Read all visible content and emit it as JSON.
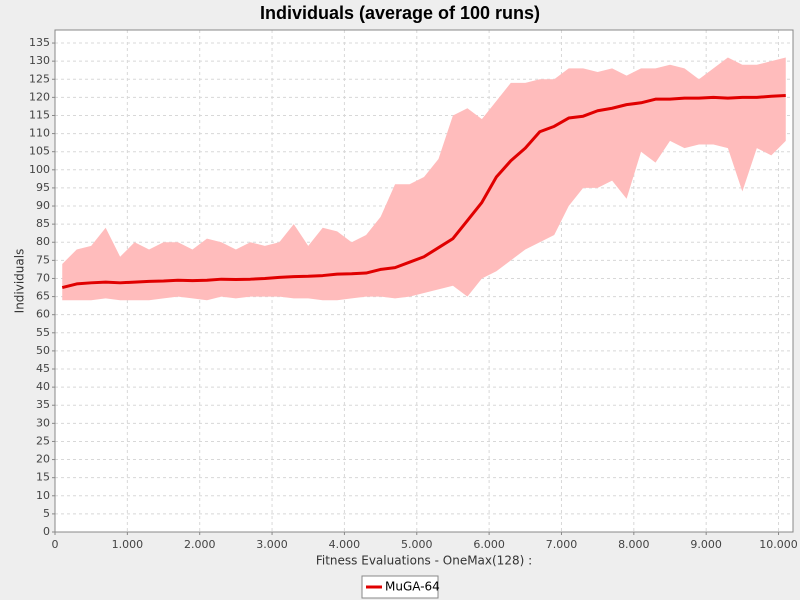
{
  "chart_data": {
    "type": "line",
    "title": "Individuals (average of 100 runs)",
    "x_label": "Fitness Evaluations - OneMax(128) :",
    "y_label": "Individuals",
    "x": [
      100,
      300,
      500,
      700,
      900,
      1100,
      1300,
      1500,
      1700,
      1900,
      2100,
      2300,
      2500,
      2700,
      2900,
      3100,
      3300,
      3500,
      3700,
      3900,
      4100,
      4300,
      4500,
      4700,
      4900,
      5100,
      5300,
      5500,
      5700,
      5900,
      6100,
      6300,
      6500,
      6700,
      6900,
      7100,
      7300,
      7500,
      7700,
      7900,
      8100,
      8300,
      8500,
      8700,
      8900,
      9100,
      9300,
      9500,
      9700,
      9900,
      10100
    ],
    "series": [
      {
        "name": "MuGA-64",
        "color": "#e00000",
        "values": [
          67.5,
          68.5,
          68.8,
          69,
          68.8,
          69,
          69.2,
          69.3,
          69.5,
          69.4,
          69.5,
          69.8,
          69.7,
          69.8,
          70,
          70.3,
          70.5,
          70.6,
          70.8,
          71.2,
          71.3,
          71.5,
          72.5,
          73,
          74.5,
          76,
          78.5,
          81,
          86,
          91,
          98,
          102.5,
          106,
          110.5,
          112,
          114.3,
          114.8,
          116.3,
          117,
          118,
          118.5,
          119.5,
          119.5,
          119.8,
          119.8,
          120,
          119.8,
          120,
          120,
          120.3,
          120.5
        ]
      }
    ],
    "band": {
      "color": "#ffbcbc",
      "upper": [
        74,
        78,
        79,
        84,
        76,
        80,
        78,
        80,
        80,
        78,
        81,
        80,
        78,
        80,
        79,
        80,
        85,
        79,
        84,
        83,
        80,
        82,
        87,
        96,
        96,
        98,
        103,
        115,
        117,
        114,
        119,
        124,
        124,
        125,
        125,
        128,
        128,
        127,
        128,
        126,
        128,
        128,
        129,
        128,
        125,
        128,
        131,
        129,
        129,
        130,
        131
      ],
      "lower": [
        64,
        64,
        64,
        64.5,
        64,
        64,
        64,
        64.5,
        65,
        64.5,
        64,
        65,
        64.5,
        65,
        65,
        65,
        64.5,
        64.5,
        64,
        64,
        64.5,
        65,
        65,
        64.5,
        65,
        66,
        67,
        68,
        65,
        70,
        72,
        75,
        78,
        80,
        82,
        90,
        95,
        95,
        97,
        92,
        105,
        102,
        108,
        106,
        107,
        107,
        106,
        94,
        106,
        104,
        108
      ]
    },
    "xlim": [
      0,
      10200
    ],
    "ylim": [
      0,
      138.6
    ],
    "xticks": [
      0,
      {
        "value": 1000,
        "label": "1.000"
      },
      {
        "value": 2000,
        "label": "2.000"
      },
      {
        "value": 3000,
        "label": "3.000"
      },
      {
        "value": 4000,
        "label": "4.000"
      },
      {
        "value": 5000,
        "label": "5.000"
      },
      {
        "value": 6000,
        "label": "6.000"
      },
      {
        "value": 7000,
        "label": "7.000"
      },
      {
        "value": 8000,
        "label": "8.000"
      },
      {
        "value": 9000,
        "label": "9.000"
      },
      {
        "value": 10000,
        "label": "10.000"
      }
    ],
    "yticks": [
      0,
      5,
      10,
      15,
      20,
      25,
      30,
      35,
      40,
      45,
      50,
      55,
      60,
      65,
      70,
      75,
      80,
      85,
      90,
      95,
      100,
      105,
      110,
      115,
      120,
      125,
      130,
      135
    ],
    "grid": true
  }
}
